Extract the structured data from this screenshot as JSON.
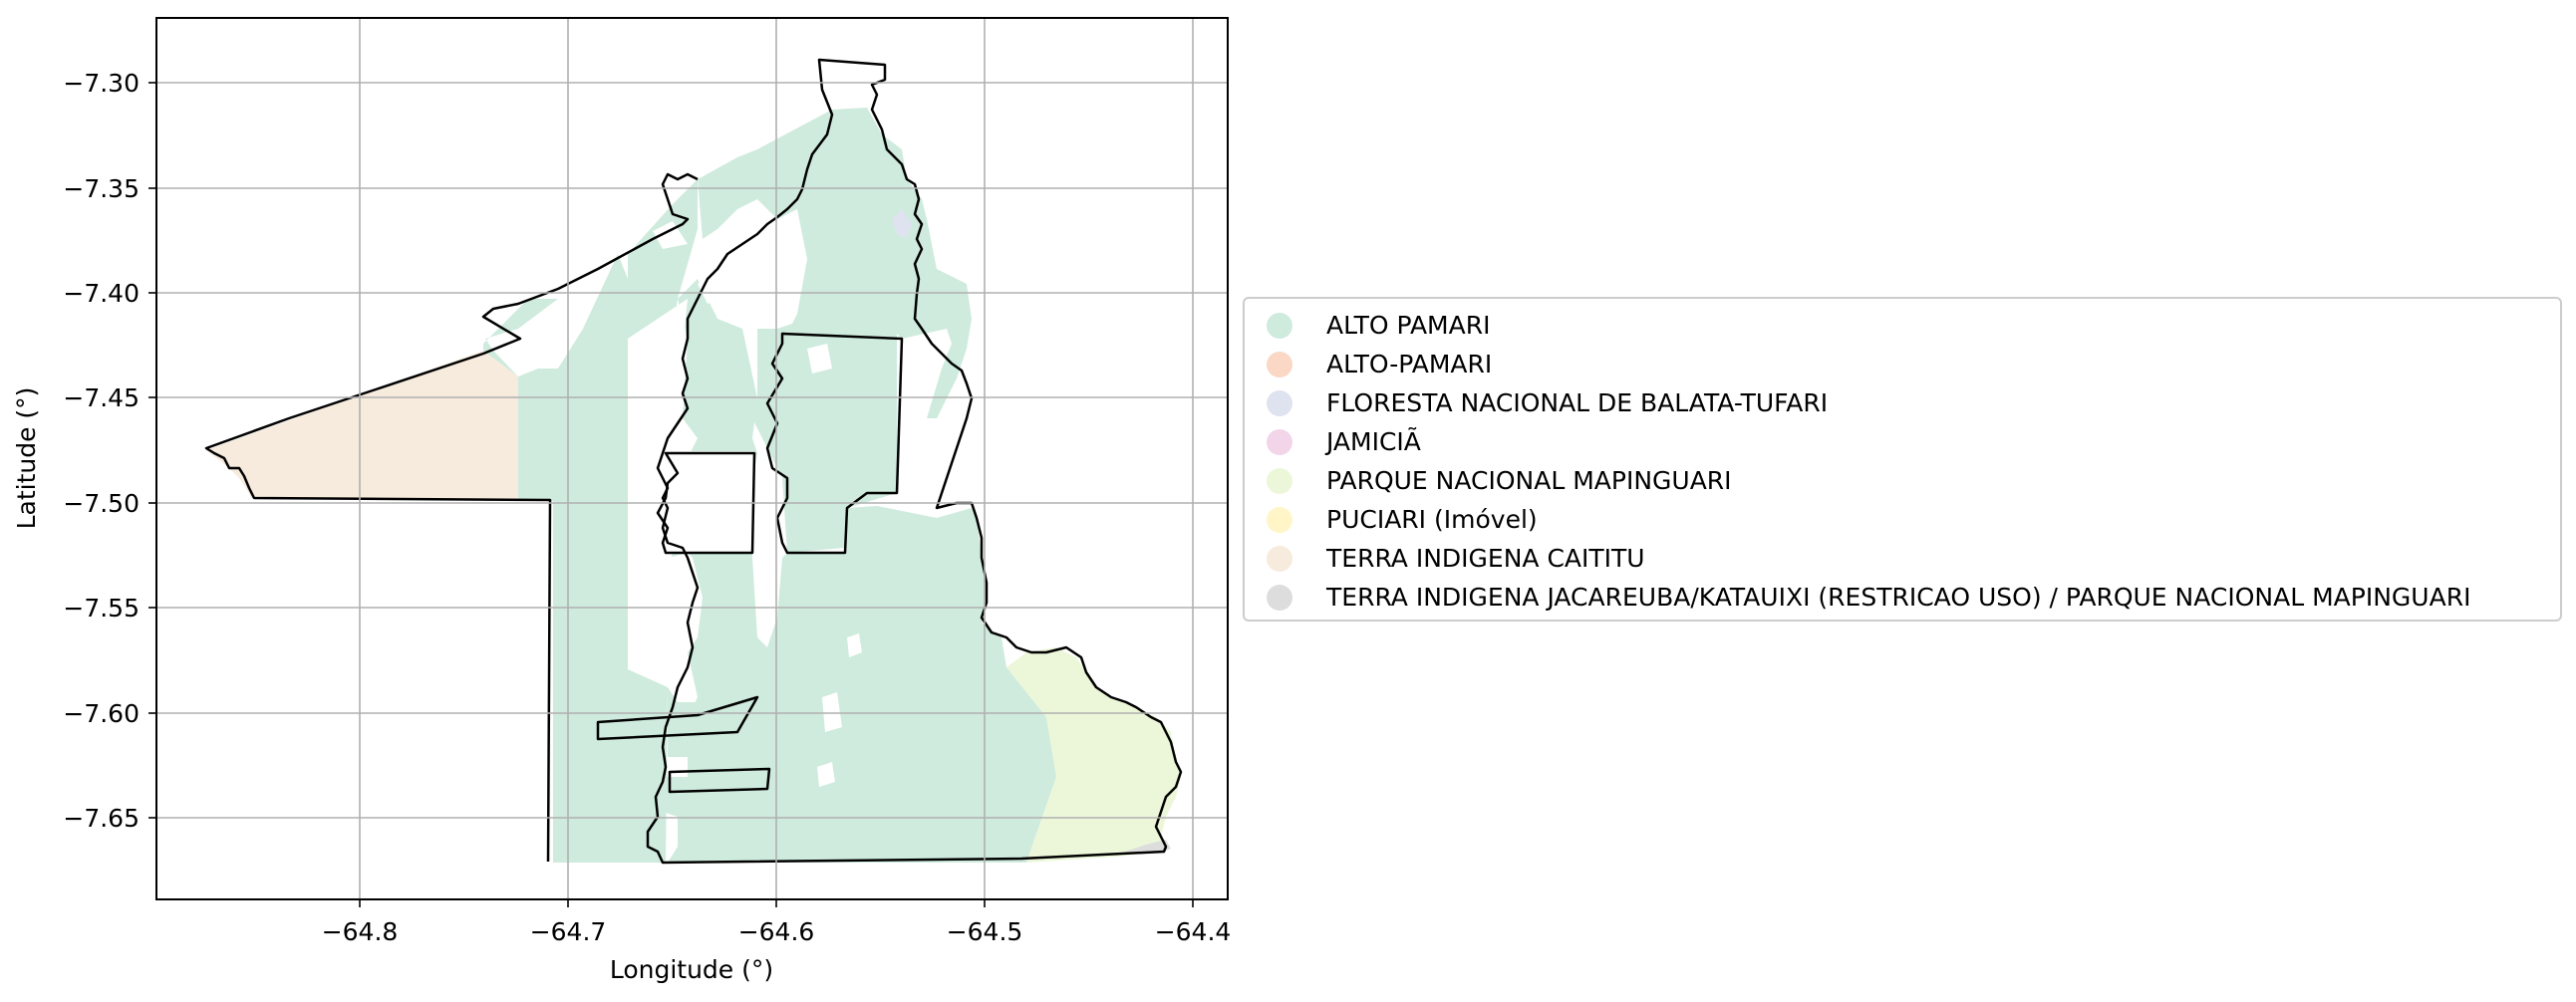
{
  "chart_data": {
    "type": "map",
    "xlabel": "Longitude (°)",
    "ylabel": "Latitude (°)",
    "xlim": [
      -64.895,
      -64.38
    ],
    "ylim": [
      -7.69,
      -7.27
    ],
    "xticks": [
      -64.8,
      -64.7,
      -64.6,
      -64.5,
      -64.4
    ],
    "xtick_labels": [
      "−64.8",
      "−64.7",
      "−64.6",
      "−64.5",
      "−64.4"
    ],
    "yticks": [
      -7.3,
      -7.35,
      -7.4,
      -7.45,
      -7.5,
      -7.55,
      -7.6,
      -7.65
    ],
    "ytick_labels": [
      "−7.30",
      "−7.35",
      "−7.40",
      "−7.45",
      "−7.50",
      "−7.55",
      "−7.60",
      "−7.65"
    ],
    "grid": true,
    "legend_position": "right",
    "legend": [
      {
        "label": "ALTO PAMARI",
        "color": "#cfebdd"
      },
      {
        "label": "ALTO-PAMARI",
        "color": "#fbd7c5"
      },
      {
        "label": "FLORESTA NACIONAL DE BALATA-TUFARI",
        "color": "#dfe3f0"
      },
      {
        "label": "JAMICIÃ",
        "color": "#f3d5ea"
      },
      {
        "label": "PARQUE NACIONAL MAPINGUARI",
        "color": "#ecf7d9"
      },
      {
        "label": "PUCIARI (Imóvel)",
        "color": "#fff5c7"
      },
      {
        "label": "TERRA INDIGENA CAITITU",
        "color": "#f6ebdd"
      },
      {
        "label": "TERRA INDIGENA JACAREUBA/KATAUIXI (RESTRICAO USO) / PARQUE NACIONAL MAPINGUARI",
        "color": "#dddddd"
      }
    ]
  }
}
